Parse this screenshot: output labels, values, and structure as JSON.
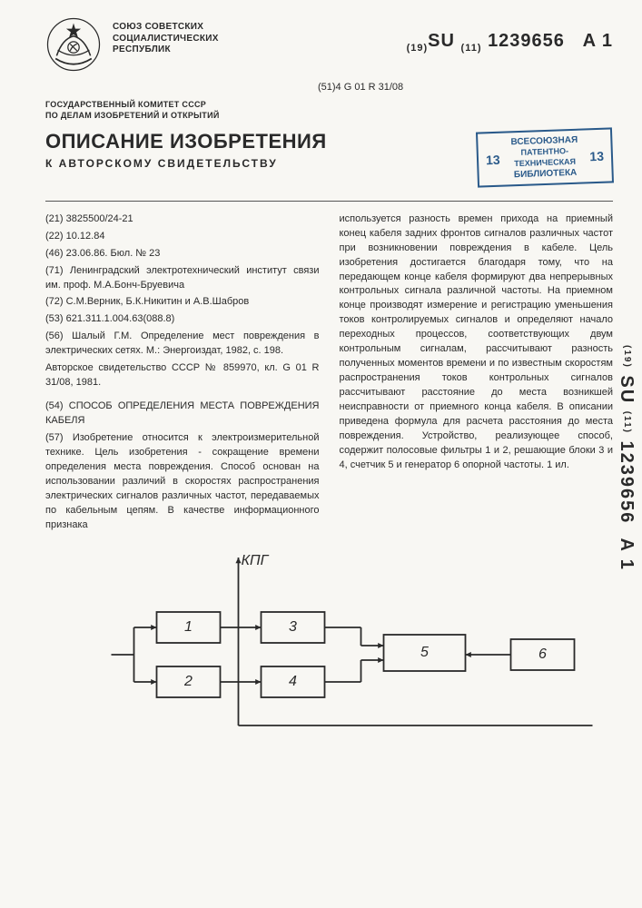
{
  "header": {
    "union_line1": "СОЮЗ СОВЕТСКИХ",
    "union_line2": "СОЦИАЛИСТИЧЕСКИХ",
    "union_line3": "РЕСПУБЛИК",
    "doc_prefix": "(19)",
    "doc_su": "SU",
    "doc_sub": "(11)",
    "doc_number": "1239656",
    "doc_kind": "A 1",
    "classification": "(51)4 G 01 R 31/08",
    "committee_line1": "ГОСУДАРСТВЕННЫЙ КОМИТЕТ СССР",
    "committee_line2": "ПО ДЕЛАМ ИЗОБРЕТЕНИЙ И ОТКРЫТИЙ",
    "title_main": "ОПИСАНИЕ ИЗОБРЕТЕНИЯ",
    "title_sub": "К АВТОРСКОМУ СВИДЕТЕЛЬСТВУ"
  },
  "stamp": {
    "top": "ВСЕСОЮЗНАЯ",
    "num": "13",
    "mid1": "ПАТЕНТНО-",
    "mid2": "ТЕХНИЧЕСКАЯ",
    "bottom": "БИБЛИОТЕКА"
  },
  "biblio": {
    "p21": "(21) 3825500/24-21",
    "p22": "(22) 10.12.84",
    "p46": "(46) 23.06.86. Бюл. № 23",
    "p71": "(71) Ленинградский электротехнический институт связи им. проф. М.А.Бонч-Бруевича",
    "p72": "(72) С.М.Верник, Б.К.Никитин и А.В.Шабров",
    "p53": "(53) 621.311.1.004.63(088.8)",
    "p56": "(56) Шалый Г.М. Определение мест повреждения в электрических сетях. М.: Энергоиздат, 1982, с. 198.",
    "p56b": "Авторское свидетельство СССР № 859970, кл. G 01 R 31/08, 1981.",
    "p54": "(54) СПОСОБ ОПРЕДЕЛЕНИЯ МЕСТА ПОВРЕЖДЕНИЯ КАБЕЛЯ",
    "p57": "(57) Изобретение относится к электроизмерительной технике. Цель изобретения - сокращение времени определения места повреждения. Способ основан на использовании различий в скоростях распространения электрических сигналов различных частот, передаваемых по кабельным цепям. В качестве информационного признака"
  },
  "col2": {
    "text": "используется разность времен прихода на приемный конец кабеля задних фронтов сигналов различных частот при возникновении повреждения в кабеле. Цель изобретения достигается благодаря тому, что на передающем конце кабеля формируют два непрерывных контрольных сигнала различной частоты. На приемном конце производят измерение и регистрацию уменьшения токов контролируемых сигналов и определяют начало переходных процессов, соответствующих двум контрольным сигналам, рассчитывают разность полученных моментов времени и по известным скоростям распространения токов контрольных сигналов рассчитывают расстояние до места возникшей неисправности от приемного конца кабеля. В описании приведена формула для расчета расстояния до места повреждения. Устройство, реализующее способ, содержит полосовые фильтры 1 и 2, решающие блоки 3 и 4, счетчик 5 и генератор 6 опорной частоты. 1 ил."
  },
  "diagram": {
    "axis_label": "КПГ",
    "blocks": {
      "b1": "1",
      "b2": "2",
      "b3": "3",
      "b4": "4",
      "b5": "5",
      "b6": "6"
    },
    "stroke": "#2a2a2a",
    "stroke_width": 1.8,
    "block_w": 70,
    "block_h": 34,
    "block5_w": 90,
    "block5_h": 40,
    "font_size": 16,
    "font_style": "italic"
  },
  "side": {
    "prefix": "(19)",
    "su": "SU",
    "sub": "(11)",
    "number": "1239656",
    "kind": "A 1"
  }
}
